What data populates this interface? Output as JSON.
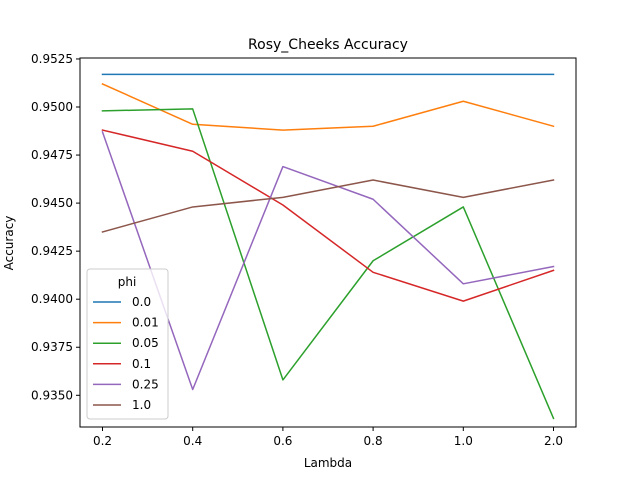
{
  "chart_data": {
    "type": "line",
    "title": "Rosy_Cheeks Accuracy",
    "xlabel": "Lambda",
    "ylabel": "Accuracy",
    "categories": [
      "0.2",
      "0.4",
      "0.6",
      "0.8",
      "1.0",
      "2.0"
    ],
    "ylim": [
      0.93335,
      0.95255
    ],
    "yticks": [
      "0.9350",
      "0.9375",
      "0.9400",
      "0.9425",
      "0.9450",
      "0.9475",
      "0.9500",
      "0.9525"
    ],
    "legend_title": "phi",
    "legend_position": "lower-left",
    "grid": false,
    "series": [
      {
        "name": "0.0",
        "color": "#1f77b4",
        "values": [
          0.9517,
          0.9517,
          0.9517,
          0.9517,
          0.9517,
          0.9517
        ]
      },
      {
        "name": "0.01",
        "color": "#ff7f0e",
        "values": [
          0.9512,
          0.9491,
          0.9488,
          0.949,
          0.9503,
          0.949
        ]
      },
      {
        "name": "0.05",
        "color": "#2ca02c",
        "values": [
          0.9498,
          0.9499,
          0.9358,
          0.942,
          0.9448,
          0.9338
        ]
      },
      {
        "name": "0.1",
        "color": "#d62728",
        "values": [
          0.9488,
          0.9477,
          0.9449,
          0.9414,
          0.9399,
          0.9415
        ]
      },
      {
        "name": "0.25",
        "color": "#9467bd",
        "values": [
          0.9487,
          0.9353,
          0.9469,
          0.9452,
          0.9408,
          0.9417
        ]
      },
      {
        "name": "1.0",
        "color": "#8c564b",
        "values": [
          0.9435,
          0.9448,
          0.9453,
          0.9462,
          0.9453,
          0.9462
        ]
      }
    ]
  }
}
